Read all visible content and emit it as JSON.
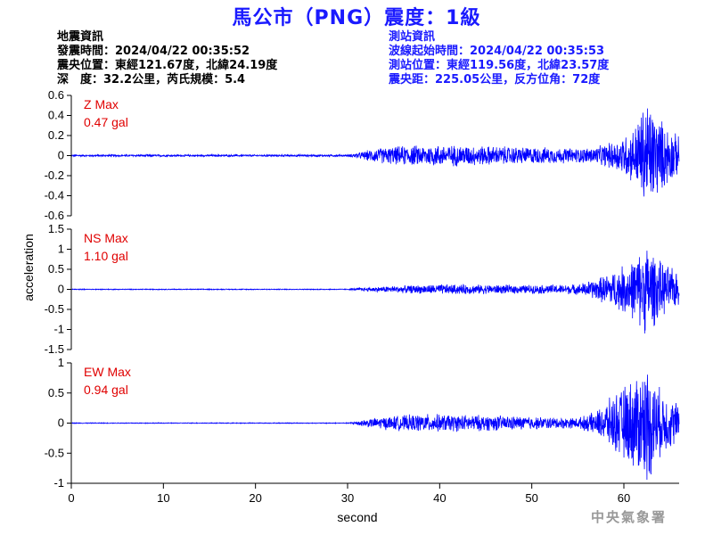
{
  "title": "馬公市（PNG）震度：1級",
  "earthquake_info": {
    "heading": "地震資訊",
    "origin_time": "發震時間：2024/04/22 00:35:52",
    "epicenter": "震央位置：東經121.67度，北緯24.19度",
    "depth_magnitude": "深　度：32.2公里，芮氏規模：5.4"
  },
  "station_info": {
    "heading": "測站資訊",
    "wave_start": "波線起始時間：2024/04/22 00:35:53",
    "location": "測站位置：東經119.56度，北緯23.57度",
    "distance": "震央距：225.05公里，反方位角：72度"
  },
  "watermark": "中央氣象署",
  "colors": {
    "trace": "#0000ff",
    "max_label": "#e00000",
    "title": "#1a1aff",
    "station_info": "#1a1aff"
  },
  "chart_data": [
    {
      "type": "line",
      "component": "Z",
      "max_label": "Z Max",
      "max_value_label": "0.47 gal",
      "ylim": [
        -0.6,
        0.6
      ],
      "yticks": [
        0.6,
        0.4,
        0.2,
        0,
        -0.2,
        -0.4,
        -0.6
      ],
      "ytick_labels": [
        "0.6",
        "0.4",
        "0.2",
        "0",
        "-0.2",
        "-0.4",
        "-0.6"
      ],
      "peak_abs": 0.47,
      "envelope": [
        [
          0,
          0.008
        ],
        [
          30,
          0.008
        ],
        [
          31.5,
          0.03
        ],
        [
          33,
          0.06
        ],
        [
          36,
          0.08
        ],
        [
          40,
          0.09
        ],
        [
          45,
          0.08
        ],
        [
          50,
          0.07
        ],
        [
          55,
          0.06
        ],
        [
          57,
          0.07
        ],
        [
          59,
          0.12
        ],
        [
          61,
          0.22
        ],
        [
          62.5,
          0.47
        ],
        [
          64,
          0.3
        ],
        [
          66,
          0.15
        ]
      ]
    },
    {
      "type": "line",
      "component": "NS",
      "max_label": "NS Max",
      "max_value_label": "1.10 gal",
      "ylim": [
        -1.5,
        1.5
      ],
      "yticks": [
        1.5,
        1,
        0.5,
        0,
        -0.5,
        -1,
        -1.5
      ],
      "ytick_labels": [
        "1.5",
        "1",
        "0.5",
        "0",
        "-0.5",
        "-1",
        "-1.5"
      ],
      "peak_abs": 1.1,
      "envelope": [
        [
          0,
          0.01
        ],
        [
          30,
          0.01
        ],
        [
          31.5,
          0.04
        ],
        [
          35,
          0.08
        ],
        [
          40,
          0.12
        ],
        [
          45,
          0.11
        ],
        [
          50,
          0.1
        ],
        [
          55,
          0.12
        ],
        [
          57,
          0.25
        ],
        [
          59,
          0.45
        ],
        [
          61,
          0.7
        ],
        [
          62.5,
          1.1
        ],
        [
          64,
          0.65
        ],
        [
          66,
          0.4
        ]
      ]
    },
    {
      "type": "line",
      "component": "EW",
      "max_label": "EW Max",
      "max_value_label": "0.94 gal",
      "ylim": [
        -1,
        1
      ],
      "yticks": [
        1,
        0.5,
        0,
        -0.5,
        -1
      ],
      "ytick_labels": [
        "1",
        "0.5",
        "0",
        "-0.5",
        "-1"
      ],
      "peak_abs": 0.94,
      "envelope": [
        [
          0,
          0.006
        ],
        [
          30,
          0.006
        ],
        [
          31.5,
          0.05
        ],
        [
          34,
          0.1
        ],
        [
          38,
          0.14
        ],
        [
          42,
          0.13
        ],
        [
          46,
          0.12
        ],
        [
          50,
          0.1
        ],
        [
          55,
          0.08
        ],
        [
          57,
          0.18
        ],
        [
          59,
          0.45
        ],
        [
          61,
          0.7
        ],
        [
          62.5,
          0.94
        ],
        [
          64,
          0.5
        ],
        [
          66,
          0.3
        ]
      ]
    }
  ],
  "axes": {
    "xlabel": "second",
    "ylabel": "acceleration",
    "xlim": [
      0,
      66
    ],
    "xticks": [
      0,
      10,
      20,
      30,
      40,
      50,
      60
    ],
    "xtick_labels": [
      "0",
      "10",
      "20",
      "30",
      "40",
      "50",
      "60"
    ]
  }
}
